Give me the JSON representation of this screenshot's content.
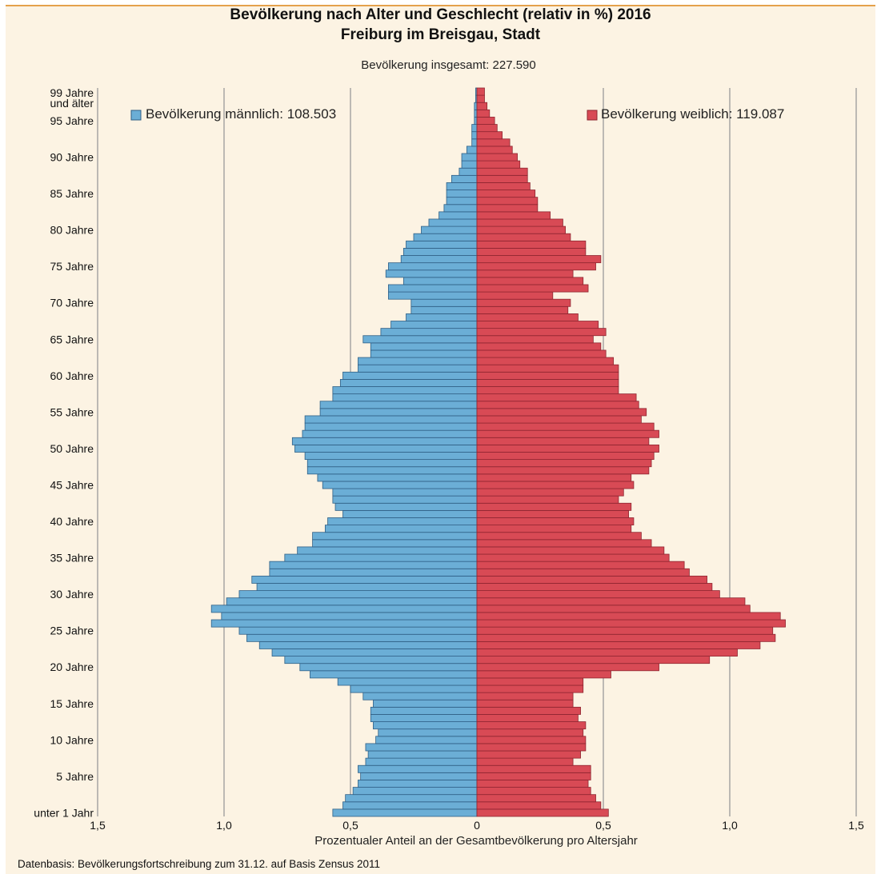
{
  "chart_data": {
    "type": "bar",
    "title": "Bevölkerung nach Alter und Geschlecht (relativ in %) 2016",
    "subtitle": "Freiburg im Breisgau, Stadt",
    "total_label": "Bevölkerung insgesamt: 227.590",
    "xlabel": "Prozentualer Anteil an der Gesamtbevölkerung pro Altersjahr",
    "source": "Datenbasis: Bevölkerungsfortschreibung zum 31.12. auf Basis Zensus 2011",
    "xlim": [
      -1.5,
      1.5
    ],
    "x_ticks": [
      "1,5",
      "1,0",
      "0,5",
      "0",
      "0,5",
      "1,0",
      "1,5"
    ],
    "y_tick_labels": [
      "unter 1 Jahr",
      "5 Jahre",
      "10 Jahre",
      "15 Jahre",
      "20 Jahre",
      "25 Jahre",
      "30 Jahre",
      "35 Jahre",
      "40 Jahre",
      "45 Jahre",
      "50 Jahre",
      "55 Jahre",
      "60 Jahre",
      "65 Jahre",
      "70 Jahre",
      "75 Jahre",
      "80 Jahre",
      "85 Jahre",
      "90 Jahre",
      "95 Jahre"
    ],
    "y_top_label": [
      "99 Jahre",
      "und älter"
    ],
    "categories": [
      "0",
      "1",
      "2",
      "3",
      "4",
      "5",
      "6",
      "7",
      "8",
      "9",
      "10",
      "11",
      "12",
      "13",
      "14",
      "15",
      "16",
      "17",
      "18",
      "19",
      "20",
      "21",
      "22",
      "23",
      "24",
      "25",
      "26",
      "27",
      "28",
      "29",
      "30",
      "31",
      "32",
      "33",
      "34",
      "35",
      "36",
      "37",
      "38",
      "39",
      "40",
      "41",
      "42",
      "43",
      "44",
      "45",
      "46",
      "47",
      "48",
      "49",
      "50",
      "51",
      "52",
      "53",
      "54",
      "55",
      "56",
      "57",
      "58",
      "59",
      "60",
      "61",
      "62",
      "63",
      "64",
      "65",
      "66",
      "67",
      "68",
      "69",
      "70",
      "71",
      "72",
      "73",
      "74",
      "75",
      "76",
      "77",
      "78",
      "79",
      "80",
      "81",
      "82",
      "83",
      "84",
      "85",
      "86",
      "87",
      "88",
      "89",
      "90",
      "91",
      "92",
      "93",
      "94",
      "95",
      "96",
      "97",
      "98",
      "99+"
    ],
    "series": [
      {
        "name": "Bevölkerung männlich: 108.503",
        "color": "#6baed6",
        "values": [
          0.57,
          0.53,
          0.52,
          0.49,
          0.47,
          0.46,
          0.47,
          0.44,
          0.43,
          0.44,
          0.4,
          0.39,
          0.41,
          0.42,
          0.42,
          0.41,
          0.45,
          0.5,
          0.55,
          0.66,
          0.7,
          0.76,
          0.81,
          0.86,
          0.91,
          0.94,
          1.05,
          1.01,
          1.05,
          0.99,
          0.94,
          0.87,
          0.89,
          0.82,
          0.82,
          0.76,
          0.71,
          0.65,
          0.65,
          0.6,
          0.59,
          0.53,
          0.56,
          0.57,
          0.57,
          0.61,
          0.63,
          0.67,
          0.67,
          0.68,
          0.72,
          0.73,
          0.69,
          0.68,
          0.68,
          0.62,
          0.62,
          0.57,
          0.57,
          0.54,
          0.53,
          0.47,
          0.47,
          0.42,
          0.42,
          0.45,
          0.38,
          0.34,
          0.28,
          0.26,
          0.26,
          0.35,
          0.35,
          0.29,
          0.36,
          0.35,
          0.3,
          0.29,
          0.28,
          0.25,
          0.22,
          0.19,
          0.15,
          0.13,
          0.12,
          0.12,
          0.12,
          0.1,
          0.07,
          0.06,
          0.06,
          0.04,
          0.02,
          0.02,
          0.02,
          0.01,
          0.01,
          0.01,
          0.005,
          0.005
        ]
      },
      {
        "name": "Bevölkerung weiblich: 119.087",
        "color": "#d84a55",
        "values": [
          0.52,
          0.49,
          0.47,
          0.45,
          0.44,
          0.45,
          0.45,
          0.38,
          0.41,
          0.43,
          0.43,
          0.42,
          0.43,
          0.4,
          0.41,
          0.38,
          0.38,
          0.42,
          0.42,
          0.53,
          0.72,
          0.92,
          1.03,
          1.12,
          1.18,
          1.17,
          1.22,
          1.2,
          1.08,
          1.06,
          0.96,
          0.93,
          0.91,
          0.84,
          0.82,
          0.76,
          0.74,
          0.69,
          0.65,
          0.61,
          0.62,
          0.6,
          0.61,
          0.56,
          0.58,
          0.62,
          0.61,
          0.68,
          0.69,
          0.7,
          0.72,
          0.68,
          0.72,
          0.7,
          0.65,
          0.67,
          0.64,
          0.63,
          0.56,
          0.56,
          0.56,
          0.56,
          0.54,
          0.51,
          0.49,
          0.46,
          0.51,
          0.48,
          0.4,
          0.36,
          0.37,
          0.3,
          0.44,
          0.42,
          0.38,
          0.47,
          0.49,
          0.43,
          0.43,
          0.37,
          0.35,
          0.34,
          0.29,
          0.24,
          0.24,
          0.23,
          0.21,
          0.2,
          0.2,
          0.17,
          0.16,
          0.14,
          0.13,
          0.1,
          0.08,
          0.07,
          0.05,
          0.04,
          0.03,
          0.03
        ]
      }
    ],
    "grid": true,
    "legend_placement": "top, male left / female right"
  }
}
